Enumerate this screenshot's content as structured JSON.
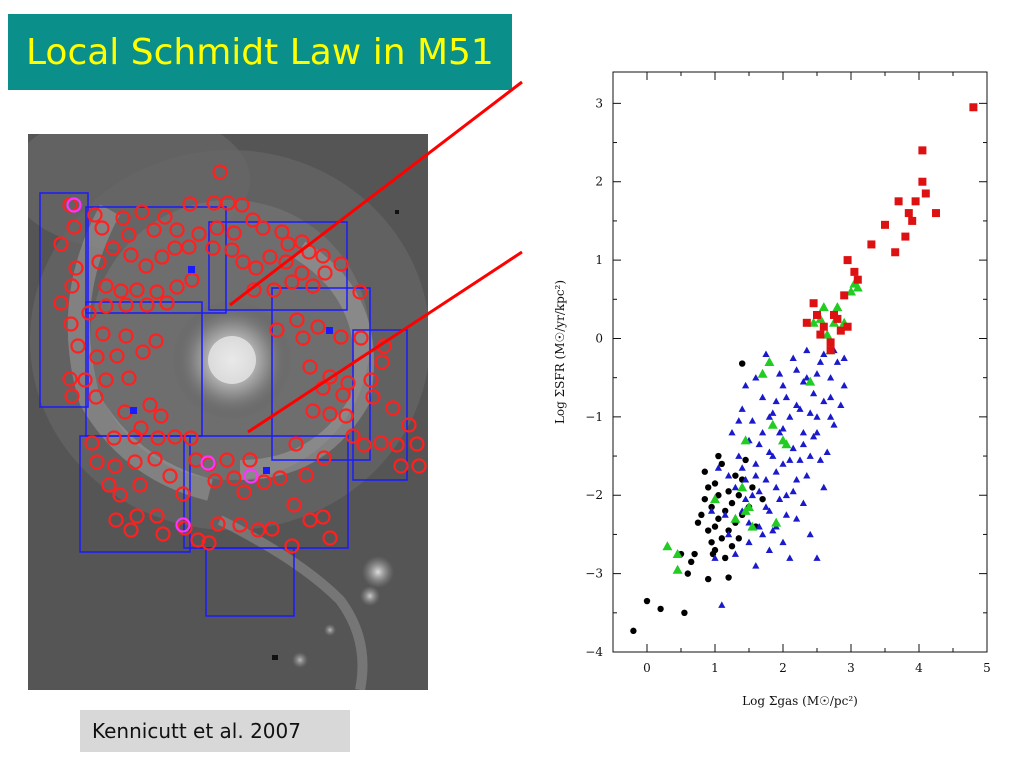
{
  "slide": {
    "title": "Local Schmidt Law in M51",
    "citation": "Kennicutt et al. 2007",
    "colors": {
      "title_bg": "#0b8f8a",
      "title_text": "#ffff00",
      "pointer_lines": "#ff0000",
      "aperture_circles": "#ff2020",
      "aperture_circles_alt": "#ff33ff",
      "field_boxes": "#1a1aff"
    }
  },
  "chart_data": {
    "type": "scatter",
    "title": "",
    "xlabel": "Log Σgas (M☉/pc²)",
    "ylabel": "Log ΣSFR (M☉/yr/kpc²)",
    "xlim": [
      -0.5,
      5
    ],
    "ylim": [
      -4,
      3.4
    ],
    "xticks": [
      0,
      1,
      2,
      3,
      4,
      5
    ],
    "yticks": [
      -4,
      -3,
      -2,
      -1,
      0,
      1,
      2,
      3
    ],
    "grid": false,
    "legend": "none",
    "series": [
      {
        "marker": "circle",
        "color": "#000000",
        "points": [
          [
            -0.2,
            -3.73
          ],
          [
            0.0,
            -3.35
          ],
          [
            0.2,
            -3.45
          ],
          [
            0.55,
            -3.5
          ],
          [
            0.65,
            -2.85
          ],
          [
            0.9,
            -3.07
          ],
          [
            0.97,
            -2.75
          ],
          [
            0.7,
            -2.75
          ],
          [
            0.75,
            -2.35
          ],
          [
            0.8,
            -2.25
          ],
          [
            0.85,
            -2.05
          ],
          [
            0.85,
            -1.7
          ],
          [
            0.95,
            -2.6
          ],
          [
            0.95,
            -2.15
          ],
          [
            1.0,
            -2.4
          ],
          [
            1.0,
            -1.85
          ],
          [
            1.05,
            -2.3
          ],
          [
            1.05,
            -2.0
          ],
          [
            1.1,
            -2.55
          ],
          [
            1.1,
            -1.6
          ],
          [
            1.15,
            -2.8
          ],
          [
            1.15,
            -2.2
          ],
          [
            1.2,
            -2.45
          ],
          [
            1.2,
            -1.95
          ],
          [
            1.25,
            -2.65
          ],
          [
            1.25,
            -2.1
          ],
          [
            1.3,
            -1.75
          ],
          [
            1.3,
            -2.35
          ],
          [
            1.35,
            -2.55
          ],
          [
            1.35,
            -2.0
          ],
          [
            1.4,
            -2.25
          ],
          [
            1.4,
            -1.8
          ],
          [
            1.45,
            -1.55
          ],
          [
            1.5,
            -2.15
          ],
          [
            1.55,
            -1.9
          ],
          [
            1.6,
            -2.4
          ],
          [
            1.0,
            -2.7
          ],
          [
            0.9,
            -2.45
          ],
          [
            1.4,
            -0.32
          ],
          [
            1.7,
            -2.05
          ],
          [
            0.6,
            -3.0
          ],
          [
            0.5,
            -2.75
          ],
          [
            1.2,
            -3.05
          ],
          [
            0.9,
            -1.9
          ],
          [
            1.05,
            -1.5
          ]
        ]
      },
      {
        "marker": "triangle",
        "color": "#1a1acc",
        "points": [
          [
            1.0,
            -2.8
          ],
          [
            1.1,
            -3.4
          ],
          [
            1.2,
            -2.5
          ],
          [
            1.3,
            -1.9
          ],
          [
            1.35,
            -1.5
          ],
          [
            1.4,
            -2.2
          ],
          [
            1.45,
            -1.8
          ],
          [
            1.5,
            -1.3
          ],
          [
            1.55,
            -2.0
          ],
          [
            1.6,
            -1.6
          ],
          [
            1.65,
            -2.4
          ],
          [
            1.7,
            -1.2
          ],
          [
            1.75,
            -1.8
          ],
          [
            1.8,
            -1.0
          ],
          [
            1.8,
            -2.2
          ],
          [
            1.85,
            -1.5
          ],
          [
            1.9,
            -0.8
          ],
          [
            1.9,
            -1.9
          ],
          [
            1.95,
            -1.2
          ],
          [
            2.0,
            -1.6
          ],
          [
            2.0,
            -0.6
          ],
          [
            2.05,
            -2.0
          ],
          [
            2.1,
            -1.0
          ],
          [
            2.15,
            -1.4
          ],
          [
            2.2,
            -0.4
          ],
          [
            2.2,
            -1.8
          ],
          [
            2.25,
            -0.9
          ],
          [
            2.3,
            -1.2
          ],
          [
            2.35,
            -0.5
          ],
          [
            2.4,
            -1.5
          ],
          [
            2.45,
            -0.7
          ],
          [
            2.5,
            -1.0
          ],
          [
            2.55,
            -0.3
          ],
          [
            2.6,
            -0.8
          ],
          [
            2.7,
            -0.5
          ],
          [
            2.75,
            -1.1
          ],
          [
            2.8,
            -0.3
          ],
          [
            2.9,
            -0.6
          ],
          [
            1.5,
            -2.6
          ],
          [
            1.6,
            -2.9
          ],
          [
            1.7,
            -2.5
          ],
          [
            1.8,
            -2.7
          ],
          [
            1.9,
            -2.4
          ],
          [
            2.0,
            -2.6
          ],
          [
            2.1,
            -2.8
          ],
          [
            2.2,
            -2.3
          ],
          [
            2.3,
            -2.1
          ],
          [
            2.4,
            -2.5
          ],
          [
            2.5,
            -2.8
          ],
          [
            2.6,
            -1.9
          ],
          [
            1.25,
            -1.2
          ],
          [
            1.4,
            -0.9
          ],
          [
            1.6,
            -0.5
          ],
          [
            1.75,
            -0.2
          ],
          [
            1.55,
            -1.05
          ],
          [
            1.45,
            -0.6
          ],
          [
            1.65,
            -1.35
          ],
          [
            1.85,
            -2.45
          ],
          [
            2.05,
            -2.25
          ],
          [
            2.25,
            -1.55
          ],
          [
            2.45,
            -1.25
          ],
          [
            2.65,
            -1.45
          ],
          [
            2.85,
            -0.85
          ],
          [
            2.35,
            -0.15
          ],
          [
            2.15,
            -0.25
          ],
          [
            1.95,
            -0.45
          ],
          [
            1.7,
            -0.75
          ],
          [
            1.35,
            -1.05
          ],
          [
            1.2,
            -1.75
          ],
          [
            1.15,
            -2.25
          ],
          [
            1.05,
            -1.65
          ],
          [
            0.95,
            -2.2
          ],
          [
            1.3,
            -2.75
          ],
          [
            1.5,
            -2.35
          ],
          [
            1.6,
            -1.75
          ],
          [
            1.8,
            -1.45
          ],
          [
            2.0,
            -1.15
          ],
          [
            2.2,
            -0.85
          ],
          [
            2.4,
            -0.95
          ],
          [
            2.6,
            -0.2
          ],
          [
            2.75,
            -0.15
          ],
          [
            2.9,
            -0.25
          ],
          [
            1.85,
            -0.95
          ],
          [
            2.05,
            -0.75
          ],
          [
            2.3,
            -0.55
          ],
          [
            2.5,
            -0.45
          ],
          [
            2.7,
            -0.75
          ],
          [
            1.45,
            -2.05
          ],
          [
            1.75,
            -2.15
          ],
          [
            1.95,
            -2.05
          ],
          [
            2.15,
            -1.95
          ],
          [
            2.35,
            -1.75
          ],
          [
            2.55,
            -1.55
          ],
          [
            1.4,
            -1.65
          ],
          [
            1.65,
            -1.95
          ],
          [
            1.9,
            -1.7
          ],
          [
            2.1,
            -1.55
          ],
          [
            2.3,
            -1.35
          ],
          [
            2.5,
            -1.2
          ],
          [
            2.7,
            -1.0
          ]
        ]
      },
      {
        "marker": "triangle",
        "color": "#22cc22",
        "points": [
          [
            0.3,
            -2.65
          ],
          [
            0.45,
            -2.95
          ],
          [
            0.45,
            -2.75
          ],
          [
            1.0,
            -2.05
          ],
          [
            1.3,
            -2.3
          ],
          [
            1.4,
            -1.9
          ],
          [
            1.45,
            -1.3
          ],
          [
            1.45,
            -2.2
          ],
          [
            1.5,
            -2.15
          ],
          [
            1.55,
            -2.4
          ],
          [
            1.7,
            -0.45
          ],
          [
            1.8,
            -0.3
          ],
          [
            1.85,
            -1.1
          ],
          [
            1.9,
            -2.35
          ],
          [
            2.0,
            -1.3
          ],
          [
            2.05,
            -1.35
          ],
          [
            2.4,
            -0.55
          ],
          [
            2.45,
            0.2
          ],
          [
            2.55,
            0.25
          ],
          [
            2.6,
            0.4
          ],
          [
            2.65,
            0.05
          ],
          [
            2.75,
            0.2
          ],
          [
            2.8,
            0.4
          ],
          [
            2.9,
            0.2
          ],
          [
            3.0,
            0.6
          ],
          [
            3.05,
            0.7
          ],
          [
            3.1,
            0.65
          ],
          [
            2.7,
            -0.15
          ]
        ]
      },
      {
        "marker": "square",
        "color": "#dd1111",
        "points": [
          [
            2.35,
            0.2
          ],
          [
            2.45,
            0.45
          ],
          [
            2.5,
            0.3
          ],
          [
            2.55,
            0.05
          ],
          [
            2.6,
            0.15
          ],
          [
            2.7,
            -0.05
          ],
          [
            2.7,
            -0.15
          ],
          [
            2.75,
            0.3
          ],
          [
            2.8,
            0.25
          ],
          [
            2.85,
            0.1
          ],
          [
            2.9,
            0.55
          ],
          [
            2.95,
            0.15
          ],
          [
            2.95,
            1.0
          ],
          [
            3.05,
            0.85
          ],
          [
            3.1,
            0.75
          ],
          [
            3.3,
            1.2
          ],
          [
            3.5,
            1.45
          ],
          [
            3.65,
            1.1
          ],
          [
            3.7,
            1.75
          ],
          [
            3.8,
            1.3
          ],
          [
            3.85,
            1.6
          ],
          [
            3.9,
            1.5
          ],
          [
            3.95,
            1.75
          ],
          [
            4.05,
            2.0
          ],
          [
            4.05,
            2.4
          ],
          [
            4.1,
            1.85
          ],
          [
            4.25,
            1.6
          ],
          [
            4.8,
            2.95
          ]
        ]
      }
    ]
  }
}
